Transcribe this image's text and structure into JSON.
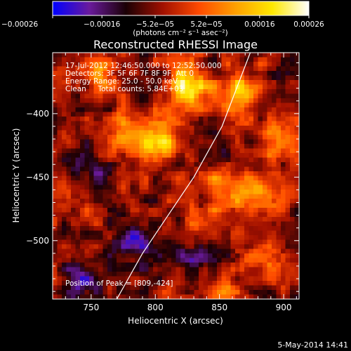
{
  "chart_data": {
    "type": "heatmap",
    "title": "Reconstructed RHESSI Image",
    "xlabel": "Heliocentric X (arcsec)",
    "ylabel": "Heliocentric Y (arcsec)",
    "xlim": [
      720,
      912
    ],
    "ylim": [
      -546,
      -352
    ],
    "x_ticks": [
      750,
      800,
      850,
      900
    ],
    "y_ticks": [
      -400,
      -450,
      -500
    ],
    "x_tick_labels": [
      "750",
      "800",
      "850",
      "900"
    ],
    "y_tick_labels": [
      "−400",
      "−450",
      "−500"
    ],
    "colorbar": {
      "range": [
        -0.00026,
        0.00026
      ],
      "tick_values": [
        -0.00026,
        -0.00016,
        -5.2e-05,
        5.2e-05,
        0.00016,
        0.00026
      ],
      "tick_labels": [
        "−0.00026",
        "−0.00016",
        "−5.2e−05",
        "5.2e−05",
        "0.00016",
        "0.00026"
      ],
      "unit_label": "(photons cm⁻² s⁻¹ asec⁻²)",
      "colors": [
        "#0000ff",
        "#6a1a9c",
        "#1a0005",
        "#a01000",
        "#ff4a00",
        "#ffa000",
        "#ffe800",
        "#ffffff"
      ]
    },
    "annotations": [
      "17-Jul-2012 12:46:50.000 to 12:52:50.000",
      "Detectors: 3F 5F 6F 7F 8F 9F, Att 0",
      "Energy Range: 25.0 - 50.0 keV",
      "Clean     Total counts: 5.84E+03"
    ],
    "peak_label": "Position of Peak = [809,-424]",
    "peak": [
      809,
      -424
    ],
    "hot_spots": [
      {
        "x": 826,
        "y": -378,
        "intensity": 0.00026
      },
      {
        "x": 804,
        "y": -421,
        "intensity": 0.00024
      },
      {
        "x": 776,
        "y": -420,
        "intensity": 0.00017
      },
      {
        "x": 866,
        "y": -383,
        "intensity": 0.00019
      },
      {
        "x": 760,
        "y": -371,
        "intensity": 0.00012
      },
      {
        "x": 878,
        "y": -465,
        "intensity": 0.00017
      },
      {
        "x": 852,
        "y": -458,
        "intensity": 0.00014
      },
      {
        "x": 895,
        "y": -422,
        "intensity": 0.00012
      },
      {
        "x": 884,
        "y": -512,
        "intensity": 0.00012
      },
      {
        "x": 836,
        "y": -492,
        "intensity": 9e-05
      },
      {
        "x": 851,
        "y": -540,
        "intensity": 0.00011
      },
      {
        "x": 733,
        "y": -462,
        "intensity": 8e-05
      }
    ],
    "cold_spots": [
      {
        "x": 782,
        "y": -500,
        "intensity": -0.00016
      },
      {
        "x": 830,
        "y": -512,
        "intensity": -0.00012
      },
      {
        "x": 750,
        "y": -442,
        "intensity": -0.0001
      },
      {
        "x": 745,
        "y": -530,
        "intensity": -0.00012
      },
      {
        "x": 842,
        "y": -428,
        "intensity": -6e-05
      }
    ],
    "limb": [
      [
        770,
        -546
      ],
      [
        790,
        -510
      ],
      [
        810,
        -480
      ],
      [
        830,
        -450
      ],
      [
        852,
        -410
      ],
      [
        874,
        -352
      ]
    ]
  },
  "footer": {
    "date": "5-May-2014 14:41"
  }
}
